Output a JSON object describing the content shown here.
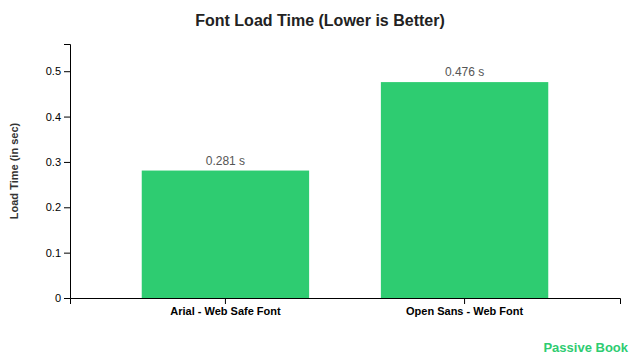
{
  "chart_data": {
    "type": "bar",
    "title": "Font Load Time (Lower is Better)",
    "categories": [
      "Arial - Web Safe Font",
      "Open Sans - Web Font"
    ],
    "values": [
      0.281,
      0.476
    ],
    "value_labels": [
      "0.281 s",
      "0.476 s"
    ],
    "data_labels": true,
    "color": "#2ECC71",
    "ylabel": "Load Time (in sec)",
    "ylim": [
      0,
      0.56
    ],
    "yticks": [
      0,
      0.1,
      0.2,
      0.3,
      0.4,
      0.5
    ],
    "grid": false,
    "annotation": "Passive Book"
  }
}
